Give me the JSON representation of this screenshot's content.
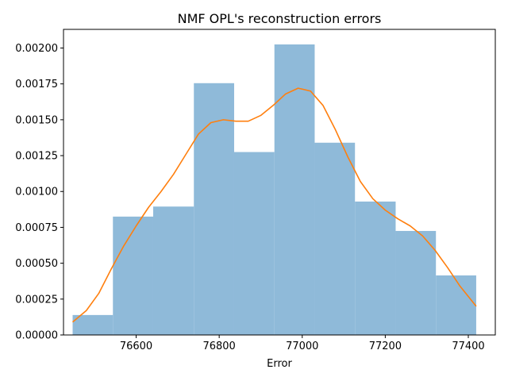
{
  "chart_data": {
    "type": "histogram",
    "title": "NMF OPL's reconstruction errors",
    "xlabel": "Error",
    "ylabel": "",
    "xlim": [
      76425,
      77465
    ],
    "ylim": [
      0,
      0.00213
    ],
    "xticks": [
      76400,
      76600,
      76800,
      77000,
      77200,
      77400
    ],
    "xtick_labels": [
      "76400",
      "76600",
      "76800",
      "77000",
      "77200",
      "77400"
    ],
    "yticks": [
      0,
      0.00025,
      0.0005,
      0.00075,
      0.001,
      0.00125,
      0.0015,
      0.00175,
      0.002
    ],
    "ytick_labels": [
      "0.00000",
      "0.00025",
      "0.00050",
      "0.00075",
      "0.00100",
      "0.00125",
      "0.00150",
      "0.00175",
      "0.00200"
    ],
    "bins": {
      "edges": [
        76447,
        76544,
        76641,
        76739,
        76836,
        76933,
        77030,
        77127,
        77225,
        77322,
        77419
      ],
      "density": [
        0.000139,
        0.000825,
        0.000895,
        0.001755,
        0.001275,
        0.002025,
        0.00134,
        0.00093,
        0.000725,
        0.000415
      ],
      "color": "#8fbad9"
    },
    "kde": {
      "color": "#ff7f0e",
      "points": [
        [
          76447,
          9e-05
        ],
        [
          76480,
          0.00017
        ],
        [
          76510,
          0.00029
        ],
        [
          76540,
          0.00046
        ],
        [
          76570,
          0.00062
        ],
        [
          76600,
          0.00076
        ],
        [
          76630,
          0.00089
        ],
        [
          76660,
          0.001
        ],
        [
          76690,
          0.00112
        ],
        [
          76720,
          0.00126
        ],
        [
          76750,
          0.0014
        ],
        [
          76780,
          0.00148
        ],
        [
          76810,
          0.0015
        ],
        [
          76840,
          0.00149
        ],
        [
          76870,
          0.00149
        ],
        [
          76900,
          0.00153
        ],
        [
          76930,
          0.0016
        ],
        [
          76960,
          0.00168
        ],
        [
          76990,
          0.00172
        ],
        [
          77020,
          0.0017
        ],
        [
          77050,
          0.0016
        ],
        [
          77080,
          0.00143
        ],
        [
          77110,
          0.00124
        ],
        [
          77140,
          0.00107
        ],
        [
          77170,
          0.00095
        ],
        [
          77200,
          0.00087
        ],
        [
          77230,
          0.00081
        ],
        [
          77260,
          0.00076
        ],
        [
          77290,
          0.00069
        ],
        [
          77320,
          0.00059
        ],
        [
          77350,
          0.00047
        ],
        [
          77380,
          0.00034
        ],
        [
          77419,
          0.0002
        ]
      ]
    },
    "grid": false,
    "legend": "none"
  }
}
